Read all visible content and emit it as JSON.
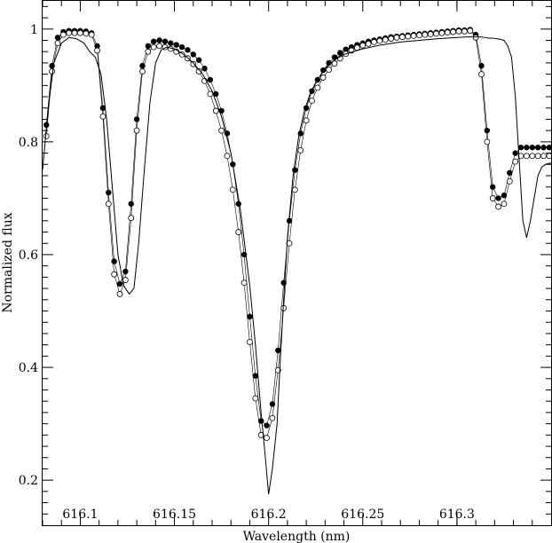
{
  "chart_data": {
    "type": "scatter",
    "title": "",
    "xlabel": "Wavelength (nm)",
    "ylabel": "Normalized flux",
    "xlim": [
      616.08,
      616.35
    ],
    "ylim": [
      0.12,
      1.05
    ],
    "x_ticks": [
      "616.1",
      "616.15",
      "616.2",
      "616.25",
      "616.3"
    ],
    "x_tick_values": [
      616.1,
      616.15,
      616.2,
      616.25,
      616.3
    ],
    "y_ticks": [
      "0.2",
      "0.4",
      "0.6",
      "0.8",
      "1"
    ],
    "y_tick_values": [
      0.2,
      0.4,
      0.6,
      0.8,
      1.0
    ],
    "grid": false,
    "series": [
      {
        "marker": "filled-circle",
        "x": [
          616.082,
          616.085,
          616.088,
          616.091,
          616.094,
          616.097,
          616.1,
          616.103,
          616.106,
          616.109,
          616.112,
          616.115,
          616.118,
          616.121,
          616.124,
          616.127,
          616.13,
          616.133,
          616.136,
          616.139,
          616.142,
          616.145,
          616.148,
          616.151,
          616.154,
          616.157,
          616.16,
          616.163,
          616.166,
          616.169,
          616.172,
          616.175,
          616.178,
          616.181,
          616.184,
          616.187,
          616.19,
          616.193,
          616.196,
          616.199,
          616.202,
          616.205,
          616.208,
          616.211,
          616.214,
          616.217,
          616.22,
          616.223,
          616.226,
          616.229,
          616.232,
          616.235,
          616.238,
          616.241,
          616.244,
          616.247,
          616.25,
          616.253,
          616.256,
          616.259,
          616.262,
          616.265,
          616.268,
          616.271,
          616.274,
          616.277,
          616.28,
          616.283,
          616.286,
          616.289,
          616.292,
          616.295,
          616.298,
          616.301,
          616.304,
          616.307,
          616.31,
          616.313,
          616.316,
          616.319,
          616.322,
          616.325,
          616.328,
          616.331,
          616.334,
          616.337,
          616.34,
          616.343,
          616.346,
          616.349
        ],
        "y": [
          0.83,
          0.935,
          0.985,
          0.995,
          0.997,
          0.997,
          0.997,
          0.996,
          0.993,
          0.97,
          0.86,
          0.71,
          0.588,
          0.548,
          0.57,
          0.69,
          0.84,
          0.935,
          0.97,
          0.978,
          0.98,
          0.978,
          0.975,
          0.972,
          0.968,
          0.963,
          0.955,
          0.945,
          0.93,
          0.91,
          0.885,
          0.855,
          0.815,
          0.76,
          0.69,
          0.6,
          0.49,
          0.385,
          0.305,
          0.297,
          0.335,
          0.43,
          0.55,
          0.66,
          0.75,
          0.815,
          0.86,
          0.89,
          0.91,
          0.927,
          0.94,
          0.95,
          0.958,
          0.964,
          0.968,
          0.972,
          0.975,
          0.978,
          0.98,
          0.982,
          0.984,
          0.986,
          0.987,
          0.988,
          0.989,
          0.99,
          0.991,
          0.992,
          0.993,
          0.994,
          0.995,
          0.996,
          0.997,
          0.998,
          0.998,
          0.999,
          0.99,
          0.935,
          0.82,
          0.72,
          0.7,
          0.705,
          0.745,
          0.78,
          0.79,
          0.79,
          0.79,
          0.79,
          0.79,
          0.79
        ]
      },
      {
        "marker": "open-circle",
        "x": [
          616.082,
          616.085,
          616.088,
          616.091,
          616.094,
          616.097,
          616.1,
          616.103,
          616.106,
          616.109,
          616.112,
          616.115,
          616.118,
          616.121,
          616.124,
          616.127,
          616.13,
          616.133,
          616.136,
          616.139,
          616.142,
          616.145,
          616.148,
          616.151,
          616.154,
          616.157,
          616.16,
          616.163,
          616.166,
          616.169,
          616.172,
          616.175,
          616.178,
          616.181,
          616.184,
          616.187,
          616.19,
          616.193,
          616.196,
          616.199,
          616.202,
          616.205,
          616.208,
          616.211,
          616.214,
          616.217,
          616.22,
          616.223,
          616.226,
          616.229,
          616.232,
          616.235,
          616.238,
          616.241,
          616.244,
          616.247,
          616.25,
          616.253,
          616.256,
          616.259,
          616.262,
          616.265,
          616.268,
          616.271,
          616.274,
          616.277,
          616.28,
          616.283,
          616.286,
          616.289,
          616.292,
          616.295,
          616.298,
          616.301,
          616.304,
          616.307,
          616.31,
          616.313,
          616.316,
          616.319,
          616.322,
          616.325,
          616.328,
          616.331,
          616.334,
          616.337,
          616.34,
          616.343,
          616.346,
          616.349
        ],
        "y": [
          0.81,
          0.925,
          0.975,
          0.99,
          0.993,
          0.993,
          0.993,
          0.992,
          0.99,
          0.962,
          0.845,
          0.69,
          0.565,
          0.53,
          0.555,
          0.665,
          0.82,
          0.925,
          0.96,
          0.968,
          0.97,
          0.968,
          0.965,
          0.96,
          0.955,
          0.948,
          0.938,
          0.925,
          0.908,
          0.885,
          0.855,
          0.82,
          0.775,
          0.715,
          0.64,
          0.55,
          0.445,
          0.345,
          0.28,
          0.275,
          0.31,
          0.395,
          0.505,
          0.62,
          0.715,
          0.785,
          0.838,
          0.873,
          0.896,
          0.914,
          0.928,
          0.939,
          0.948,
          0.956,
          0.962,
          0.967,
          0.971,
          0.974,
          0.977,
          0.979,
          0.981,
          0.983,
          0.985,
          0.986,
          0.987,
          0.988,
          0.989,
          0.99,
          0.991,
          0.992,
          0.993,
          0.994,
          0.995,
          0.996,
          0.996,
          0.997,
          0.985,
          0.92,
          0.8,
          0.7,
          0.685,
          0.69,
          0.73,
          0.765,
          0.775,
          0.775,
          0.775,
          0.775,
          0.775,
          0.775
        ]
      },
      {
        "marker": "line",
        "x": [
          616.08,
          616.083,
          616.086,
          616.09,
          616.094,
          616.098,
          616.102,
          616.105,
          616.108,
          616.111,
          616.114,
          616.117,
          616.12,
          616.123,
          616.126,
          616.1285,
          616.131,
          616.134,
          616.137,
          616.14,
          616.143,
          616.146,
          616.15,
          616.155,
          616.16,
          616.165,
          616.17,
          616.175,
          616.18,
          616.185,
          616.19,
          616.193,
          616.196,
          616.198,
          616.2,
          616.202,
          616.2045,
          616.206,
          616.208,
          616.21,
          616.213,
          616.216,
          616.219,
          616.222,
          616.225,
          616.23,
          616.235,
          616.24,
          616.25,
          616.26,
          616.27,
          616.28,
          616.29,
          616.3,
          616.305,
          616.31,
          616.313,
          616.315,
          616.317,
          616.319,
          616.321,
          616.323,
          616.325,
          616.327,
          616.329,
          616.331,
          616.333,
          616.335,
          616.337,
          616.339,
          616.341,
          616.343,
          616.345,
          616.347,
          616.349,
          616.35
        ],
        "y": [
          0.75,
          0.86,
          0.94,
          0.975,
          0.985,
          0.983,
          0.975,
          0.96,
          0.95,
          0.92,
          0.84,
          0.72,
          0.6,
          0.545,
          0.53,
          0.54,
          0.62,
          0.75,
          0.87,
          0.94,
          0.963,
          0.968,
          0.965,
          0.955,
          0.94,
          0.92,
          0.89,
          0.845,
          0.78,
          0.68,
          0.545,
          0.44,
          0.32,
          0.25,
          0.175,
          0.22,
          0.3,
          0.4,
          0.52,
          0.63,
          0.74,
          0.81,
          0.855,
          0.885,
          0.905,
          0.93,
          0.945,
          0.955,
          0.965,
          0.972,
          0.977,
          0.98,
          0.983,
          0.985,
          0.986,
          0.986,
          0.986,
          0.985,
          0.984,
          0.984,
          0.983,
          0.982,
          0.98,
          0.97,
          0.95,
          0.88,
          0.77,
          0.66,
          0.63,
          0.66,
          0.7,
          0.74,
          0.755,
          0.76,
          0.762,
          0.762
        ]
      }
    ]
  }
}
